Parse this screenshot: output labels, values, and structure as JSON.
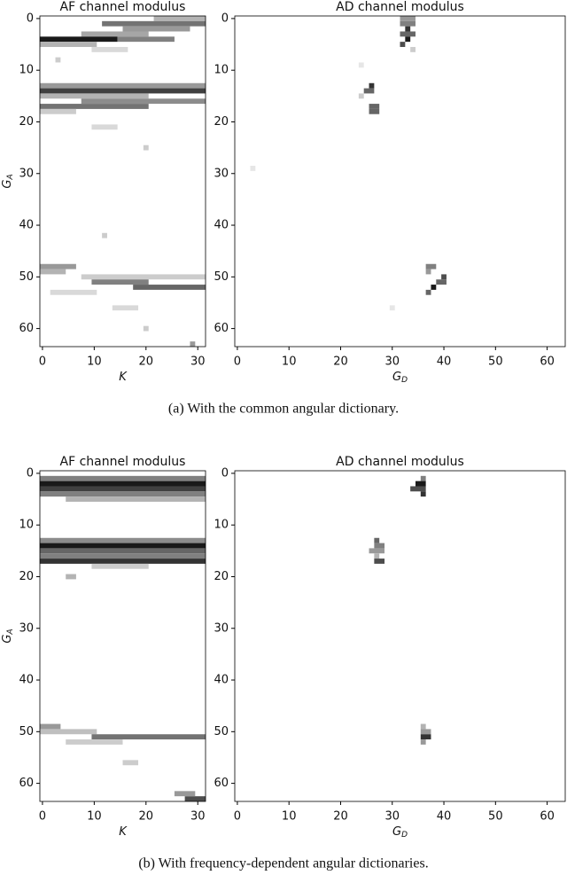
{
  "chart_data": [
    {
      "type": "heatmap",
      "title": "AF channel modulus",
      "xlabel": "K",
      "ylabel": "G",
      "ylabel_sub": "A",
      "xlim": [
        -0.5,
        31.5
      ],
      "ylim": [
        63.5,
        -0.5
      ],
      "xticks": [
        0,
        10,
        20,
        30
      ],
      "yticks": [
        0,
        10,
        20,
        30,
        40,
        50,
        60
      ],
      "cells": [
        [
          0,
          22,
          31,
          0.3
        ],
        [
          1,
          12,
          31,
          0.55
        ],
        [
          2,
          16,
          28,
          0.4
        ],
        [
          3,
          8,
          20,
          0.35
        ],
        [
          4,
          0,
          14,
          0.9
        ],
        [
          4,
          15,
          25,
          0.5
        ],
        [
          5,
          0,
          10,
          0.3
        ],
        [
          6,
          10,
          16,
          0.15
        ],
        [
          13,
          0,
          31,
          0.4
        ],
        [
          14,
          0,
          31,
          0.75
        ],
        [
          15,
          0,
          20,
          0.3
        ],
        [
          16,
          8,
          31,
          0.45
        ],
        [
          17,
          0,
          20,
          0.55
        ],
        [
          18,
          0,
          6,
          0.2
        ],
        [
          21,
          10,
          14,
          0.15
        ],
        [
          48,
          0,
          6,
          0.4
        ],
        [
          49,
          0,
          4,
          0.3
        ],
        [
          50,
          8,
          31,
          0.2
        ],
        [
          51,
          10,
          20,
          0.5
        ],
        [
          52,
          18,
          31,
          0.6
        ],
        [
          53,
          2,
          10,
          0.15
        ],
        [
          56,
          14,
          18,
          0.15
        ],
        [
          8,
          3,
          3,
          0.2
        ],
        [
          25,
          20,
          20,
          0.2
        ],
        [
          42,
          12,
          12,
          0.2
        ],
        [
          60,
          20,
          20,
          0.2
        ],
        [
          63,
          29,
          29,
          0.4
        ]
      ]
    },
    {
      "type": "heatmap",
      "title": "AD channel modulus",
      "xlabel": "G",
      "xlabel_sub": "D",
      "xlim": [
        -0.5,
        63.5
      ],
      "ylim": [
        63.5,
        -0.5
      ],
      "xticks": [
        0,
        10,
        20,
        30,
        40,
        50,
        60
      ],
      "yticks": [
        0,
        10,
        20,
        30,
        40,
        50,
        60
      ],
      "cells": [
        [
          0,
          32,
          34,
          0.4
        ],
        [
          1,
          32,
          34,
          0.5
        ],
        [
          2,
          33,
          33,
          0.8
        ],
        [
          3,
          32,
          34,
          0.6
        ],
        [
          4,
          33,
          33,
          0.9
        ],
        [
          5,
          32,
          32,
          0.7
        ],
        [
          6,
          34,
          34,
          0.2
        ],
        [
          13,
          26,
          26,
          0.8
        ],
        [
          14,
          25,
          26,
          0.6
        ],
        [
          15,
          24,
          24,
          0.2
        ],
        [
          17,
          26,
          27,
          0.6
        ],
        [
          18,
          26,
          27,
          0.6
        ],
        [
          48,
          37,
          38,
          0.5
        ],
        [
          49,
          37,
          37,
          0.4
        ],
        [
          50,
          40,
          40,
          0.7
        ],
        [
          51,
          39,
          40,
          0.6
        ],
        [
          52,
          38,
          38,
          0.9
        ],
        [
          53,
          37,
          37,
          0.6
        ],
        [
          9,
          24,
          24,
          0.1
        ],
        [
          29,
          3,
          3,
          0.1
        ],
        [
          56,
          30,
          30,
          0.1
        ]
      ]
    },
    {
      "type": "heatmap",
      "title": "AF channel modulus",
      "xlabel": "K",
      "ylabel": "G",
      "ylabel_sub": "A",
      "xlim": [
        -0.5,
        31.5
      ],
      "ylim": [
        63.5,
        -0.5
      ],
      "xticks": [
        0,
        10,
        20,
        30
      ],
      "yticks": [
        0,
        10,
        20,
        30,
        40,
        50,
        60
      ],
      "cells": [
        [
          1,
          0,
          31,
          0.5
        ],
        [
          2,
          0,
          31,
          0.9
        ],
        [
          3,
          0,
          31,
          0.75
        ],
        [
          4,
          0,
          31,
          0.5
        ],
        [
          5,
          5,
          31,
          0.3
        ],
        [
          13,
          0,
          31,
          0.45
        ],
        [
          14,
          0,
          31,
          0.9
        ],
        [
          15,
          0,
          31,
          0.6
        ],
        [
          16,
          0,
          31,
          0.5
        ],
        [
          17,
          0,
          31,
          0.8
        ],
        [
          18,
          10,
          20,
          0.2
        ],
        [
          20,
          5,
          6,
          0.3
        ],
        [
          49,
          0,
          3,
          0.4
        ],
        [
          50,
          0,
          10,
          0.25
        ],
        [
          51,
          10,
          31,
          0.55
        ],
        [
          52,
          5,
          15,
          0.2
        ],
        [
          56,
          16,
          18,
          0.2
        ],
        [
          63,
          28,
          31,
          0.7
        ],
        [
          62,
          26,
          29,
          0.4
        ]
      ]
    },
    {
      "type": "heatmap",
      "title": "AD channel modulus",
      "xlabel": "G",
      "xlabel_sub": "D",
      "xlim": [
        -0.5,
        63.5
      ],
      "ylim": [
        63.5,
        -0.5
      ],
      "xticks": [
        0,
        10,
        20,
        30,
        40,
        50,
        60
      ],
      "yticks": [
        0,
        10,
        20,
        30,
        40,
        50,
        60
      ],
      "cells": [
        [
          1,
          36,
          36,
          0.5
        ],
        [
          2,
          35,
          36,
          0.9
        ],
        [
          3,
          34,
          36,
          0.7
        ],
        [
          4,
          36,
          36,
          0.8
        ],
        [
          13,
          27,
          27,
          0.6
        ],
        [
          14,
          27,
          28,
          0.5
        ],
        [
          15,
          26,
          28,
          0.4
        ],
        [
          16,
          27,
          27,
          0.3
        ],
        [
          17,
          27,
          28,
          0.7
        ],
        [
          49,
          36,
          36,
          0.3
        ],
        [
          50,
          36,
          37,
          0.4
        ],
        [
          51,
          36,
          37,
          0.8
        ],
        [
          52,
          36,
          36,
          0.4
        ]
      ]
    }
  ],
  "captions": [
    "(a)  With the common angular dictionary.",
    "(b)  With frequency-dependent angular dictionaries."
  ]
}
